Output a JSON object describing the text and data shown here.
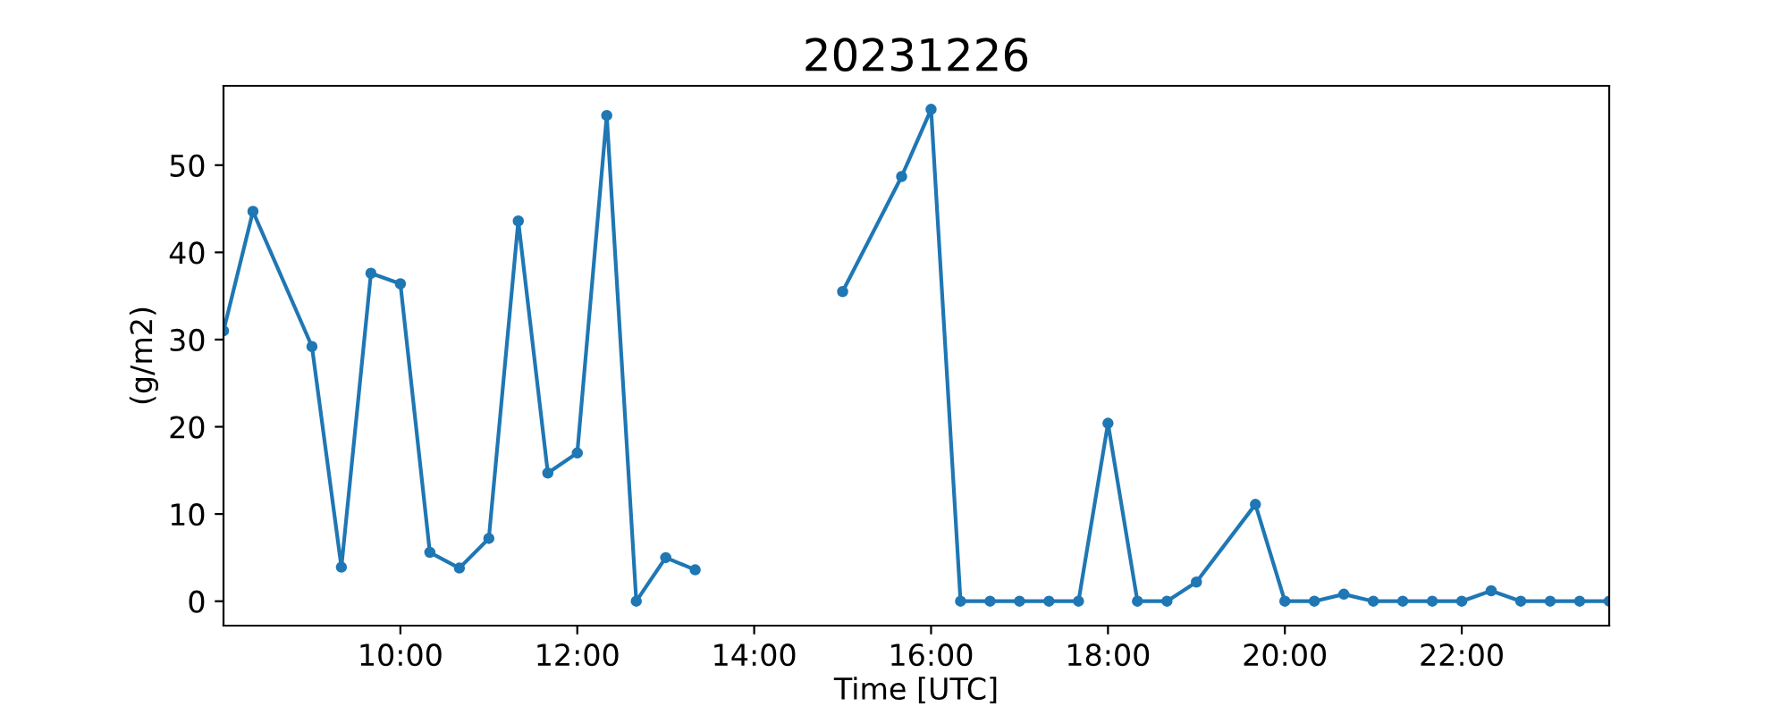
{
  "chart_data": {
    "type": "line",
    "title": "20231226",
    "xlabel": "Time [UTC]",
    "ylabel": "(g/m2)",
    "x": [
      8,
      8.333,
      9,
      9.333,
      9.667,
      10,
      10.333,
      10.667,
      11,
      11.333,
      11.667,
      12,
      12.333,
      12.667,
      13,
      13.333,
      13.667,
      15,
      15.667,
      16,
      16.333,
      16.667,
      17,
      17.333,
      17.667,
      18,
      18.333,
      18.667,
      19,
      19.667,
      20,
      20.333,
      20.667,
      21,
      21.333,
      21.667,
      22,
      22.333,
      22.667,
      23,
      23.333,
      23.667
    ],
    "series": [
      {
        "color": "#1f77b4",
        "values": [
          31.0,
          44.7,
          29.2,
          3.9,
          37.6,
          36.4,
          5.6,
          3.8,
          7.2,
          43.6,
          14.7,
          17.0,
          55.7,
          0.0,
          5.0,
          3.6,
          null,
          35.5,
          48.7,
          56.4,
          0,
          0,
          0,
          0,
          0,
          20.4,
          0,
          0,
          2.2,
          11.1,
          0,
          0,
          0.8,
          0,
          0,
          0,
          0,
          1.2,
          0,
          0,
          0,
          0
        ]
      }
    ],
    "xlim": [
      8,
      23.667
    ],
    "ylim": [
      -2.8,
      59.1
    ],
    "xticks": [
      {
        "value": 10,
        "label": "10:00"
      },
      {
        "value": 12,
        "label": "12:00"
      },
      {
        "value": 14,
        "label": "14:00"
      },
      {
        "value": 16,
        "label": "16:00"
      },
      {
        "value": 18,
        "label": "18:00"
      },
      {
        "value": 20,
        "label": "20:00"
      },
      {
        "value": 22,
        "label": "22:00"
      }
    ],
    "yticks": [
      0,
      10,
      20,
      30,
      40,
      50
    ],
    "marker": "circle",
    "line_style": "solid",
    "grid": false,
    "legend": false
  }
}
